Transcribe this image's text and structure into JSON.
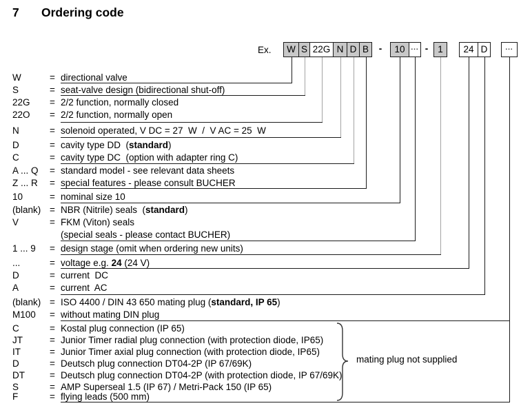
{
  "title": {
    "number": "7",
    "text": "Ordering code"
  },
  "example": {
    "label": "Ex.",
    "separator": "-",
    "boxes": [
      {
        "label": "W",
        "shaded": true
      },
      {
        "label": "S",
        "shaded": true
      },
      {
        "label": "22G",
        "shaded": false
      },
      {
        "label": "N",
        "shaded": true
      },
      {
        "label": "D",
        "shaded": true
      },
      {
        "label": "B",
        "shaded": true
      },
      {
        "label": "10",
        "shaded": true
      },
      {
        "label": "...",
        "shaded": false
      },
      {
        "label": "1",
        "shaded": true
      },
      {
        "label": "24",
        "shaded": false
      },
      {
        "label": "D",
        "shaded": false
      },
      {
        "label": "...",
        "shaded": false
      }
    ]
  },
  "colors": {
    "box_shaded": "#c8c8c8",
    "line": "#1a1a1a",
    "line_gray": "#a3a3a3"
  },
  "legend": {
    "eq_sign": "=",
    "rows": [
      {
        "code": "W",
        "desc": [
          [
            "directional valve",
            false
          ]
        ]
      },
      {
        "code": "S",
        "desc": [
          [
            "seat-valve design (bidirectional shut-off)",
            false
          ]
        ]
      },
      {
        "code": "22G",
        "desc": [
          [
            "2/2 function, normally closed",
            false
          ]
        ]
      },
      {
        "code": "22O",
        "desc": [
          [
            "2/2 function, normally open",
            false
          ]
        ]
      },
      {
        "code": "N",
        "desc": [
          [
            "solenoid operated, V DC = 27  W  /  V AC = 25  W",
            false
          ]
        ]
      },
      {
        "code": "D",
        "desc": [
          [
            "cavity type DD  (",
            false
          ],
          [
            "standard",
            true
          ],
          [
            ")",
            false
          ]
        ]
      },
      {
        "code": "C",
        "desc": [
          [
            "cavity type DC  (option with adapter ring C)",
            false
          ]
        ]
      },
      {
        "code": "A ... Q",
        "desc": [
          [
            "standard model - see relevant data sheets",
            false
          ]
        ]
      },
      {
        "code": "Z ... R",
        "desc": [
          [
            "special features - please consult BUCHER",
            false
          ]
        ]
      },
      {
        "code": "10",
        "desc": [
          [
            "nominal size 10",
            false
          ]
        ]
      },
      {
        "code": "(blank)",
        "desc": [
          [
            "NBR (Nitrile) seals  (",
            false
          ],
          [
            "standard",
            true
          ],
          [
            ")",
            false
          ]
        ]
      },
      {
        "code": "V",
        "desc": [
          [
            "FKM (Viton) seals",
            false
          ]
        ]
      },
      {
        "code": "",
        "desc": [
          [
            "(special seals - please contact BUCHER)",
            false
          ]
        ]
      },
      {
        "code": "1 ... 9",
        "desc": [
          [
            "design stage (omit when ordering new units)",
            false
          ]
        ]
      },
      {
        "code": "...",
        "desc": [
          [
            "voltage e.g. ",
            false
          ],
          [
            "24",
            true
          ],
          [
            " (24 V)",
            false
          ]
        ]
      },
      {
        "code": "D",
        "desc": [
          [
            "current  DC",
            false
          ]
        ]
      },
      {
        "code": "A",
        "desc": [
          [
            "current  AC",
            false
          ]
        ]
      },
      {
        "code": "(blank)",
        "desc": [
          [
            "ISO 4400 / DIN 43 650 mating plug (",
            false
          ],
          [
            "standard, IP 65",
            true
          ],
          [
            ")",
            false
          ]
        ]
      },
      {
        "code": "M100",
        "desc": [
          [
            "without mating DIN plug",
            false
          ]
        ]
      },
      {
        "code": "C",
        "desc": [
          [
            "Kostal plug connection (IP 65)",
            false
          ]
        ]
      },
      {
        "code": "JT",
        "desc": [
          [
            "Junior Timer radial plug connection (with protection diode, IP65)",
            false
          ]
        ]
      },
      {
        "code": "IT",
        "desc": [
          [
            "Junior Timer axial plug connection (with protection diode, IP65)",
            false
          ]
        ]
      },
      {
        "code": "D",
        "desc": [
          [
            "Deutsch plug connection DT04-2P (IP 67/69K)",
            false
          ]
        ]
      },
      {
        "code": "DT",
        "desc": [
          [
            "Deutsch plug connection DT04-2P (with protection diode, IP 67/69K)",
            false
          ]
        ]
      },
      {
        "code": "S",
        "desc": [
          [
            "AMP Superseal 1.5 (IP 67) / Metri-Pack 150 (IP 65)",
            false
          ]
        ]
      },
      {
        "code": "F",
        "desc": [
          [
            "flying leads (500 mm)",
            false
          ]
        ]
      }
    ]
  },
  "note": "mating plug not supplied"
}
